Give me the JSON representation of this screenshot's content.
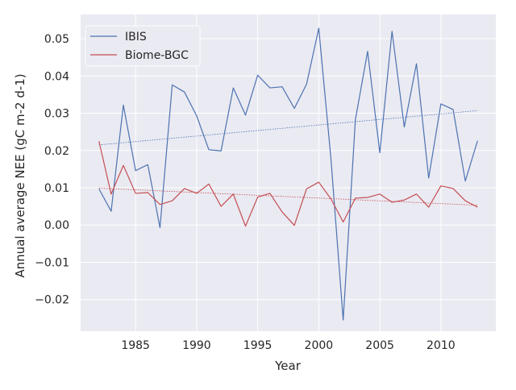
{
  "chart_data": {
    "type": "line",
    "title": "",
    "xlabel": "Year",
    "ylabel": "Annual average NEE (gC m-2 d-1)",
    "xlim": [
      1980.5,
      2014.5
    ],
    "ylim": [
      -0.0285,
      0.0565
    ],
    "grid": true,
    "legend_position": "upper left",
    "xticks": [
      1985,
      1990,
      1995,
      2000,
      2005,
      2010
    ],
    "yticks": [
      -0.02,
      -0.01,
      0.0,
      0.01,
      0.02,
      0.03,
      0.04,
      0.05
    ],
    "ytick_labels": [
      "−0.02",
      "−0.01",
      "0.00",
      "0.01",
      "0.02",
      "0.03",
      "0.04",
      "0.05"
    ],
    "x": [
      1982,
      1983,
      1984,
      1985,
      1986,
      1987,
      1988,
      1989,
      1990,
      1991,
      1992,
      1993,
      1994,
      1995,
      1996,
      1997,
      1998,
      1999,
      2000,
      2001,
      2002,
      2003,
      2004,
      2005,
      2006,
      2007,
      2008,
      2009,
      2010,
      2011,
      2012,
      2013
    ],
    "series": [
      {
        "name": "IBIS",
        "color": "#4c72b0",
        "values": [
          0.0097,
          0.0037,
          0.0322,
          0.0146,
          0.0162,
          -0.0007,
          0.0376,
          0.0357,
          0.0293,
          0.0202,
          0.0199,
          0.0368,
          0.0295,
          0.0402,
          0.0368,
          0.0371,
          0.0313,
          0.0378,
          0.0528,
          0.0177,
          -0.0255,
          0.0283,
          0.0466,
          0.0194,
          0.052,
          0.0263,
          0.0433,
          0.0126,
          0.0325,
          0.031,
          0.0118,
          0.0226
        ],
        "trend": [
          0.0215,
          0.0307
        ]
      },
      {
        "name": "Biome-BGC",
        "color": "#c44e52",
        "values": [
          0.0225,
          0.0083,
          0.016,
          0.0085,
          0.0087,
          0.0055,
          0.0065,
          0.0098,
          0.0085,
          0.011,
          0.005,
          0.0083,
          -0.0003,
          0.0075,
          0.0085,
          0.0035,
          -0.0001,
          0.0097,
          0.0115,
          0.007,
          0.0008,
          0.0072,
          0.0074,
          0.0083,
          0.0061,
          0.0067,
          0.0083,
          0.0048,
          0.0105,
          0.0098,
          0.0065,
          0.0048
        ],
        "trend": [
          0.0099,
          0.0053
        ]
      }
    ]
  }
}
